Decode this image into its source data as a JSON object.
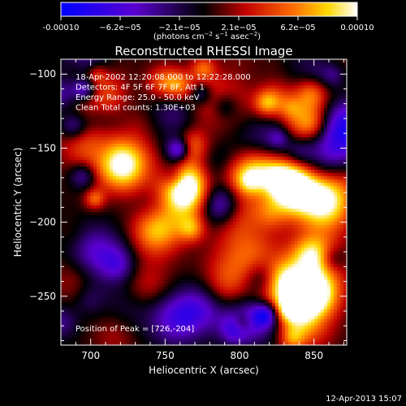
{
  "colorbar": {
    "ticks": [
      "-0.00010",
      "−6.2e−05",
      "−2.1e−05",
      "2.1e−05",
      "6.2e−05",
      "0.00010"
    ],
    "units_main": "(photons cm",
    "units_exp1": "−2",
    "units_mid": " s",
    "units_exp2": "−1",
    "units_tail": " asec",
    "units_exp3": "−2",
    "units_close": ")"
  },
  "chart_data": {
    "type": "heatmap",
    "title": "Reconstructed RHESSI Image",
    "xlabel": "Heliocentric X (arcsec)",
    "ylabel": "Heliocentric Y (arcsec)",
    "xlim": [
      680,
      872
    ],
    "ylim": [
      -283,
      -90
    ],
    "x_ticks": [
      "700",
      "750",
      "800",
      "850"
    ],
    "y_ticks": [
      "−100",
      "−150",
      "−200",
      "−250"
    ],
    "colorbar_range": [
      -0.0001,
      0.0001
    ],
    "colormap": "blue-black-red-yellow-white",
    "annotations": [
      "18-Apr-2002 12:20:08.000 to 12:22:28.000",
      "Detectors: 4F 5F 6F 7F 8F, Att 1",
      "Energy Range: 25.0 - 50.0 keV",
      "Clean     Total counts: 1.30E+03"
    ],
    "peak_label": "Position of Peak = [726,-204]",
    "peak": [
      726,
      -204
    ]
  },
  "timestamp": "12-Apr-2013 15:07"
}
